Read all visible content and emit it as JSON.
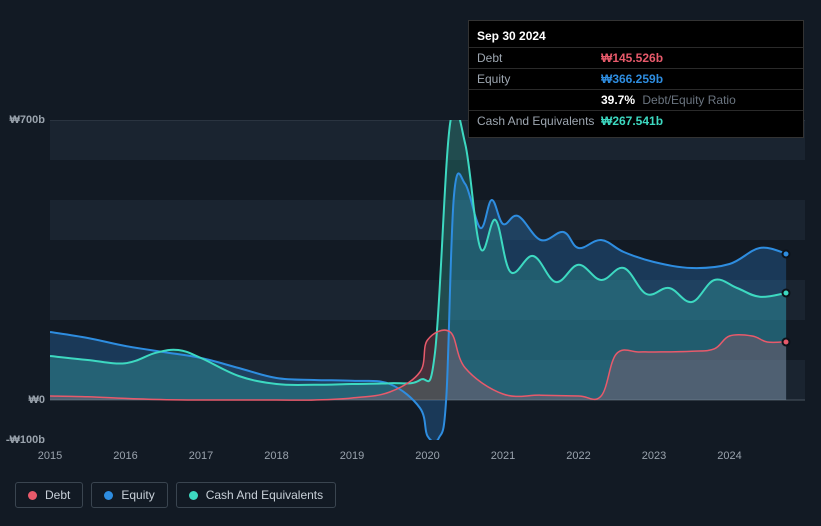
{
  "tooltip": {
    "date": "Sep 30 2024",
    "rows": {
      "debt": {
        "label": "Debt",
        "value": "₩145.526b",
        "color": "#e85a6b"
      },
      "equity": {
        "label": "Equity",
        "value": "₩366.259b",
        "color": "#2e8de0"
      },
      "ratio": {
        "pct": "39.7%",
        "label": "Debt/Equity Ratio"
      },
      "cash": {
        "label": "Cash And Equivalents",
        "value": "₩267.541b",
        "color": "#3dd9c1"
      }
    }
  },
  "chart": {
    "type": "area",
    "background_color": "#121a24",
    "plot_band_color": "#1a2430",
    "grid_color": "#3a4550",
    "ylim": [
      -100,
      700
    ],
    "y_ticks": [
      {
        "v": 700,
        "label": "₩700b"
      },
      {
        "v": 0,
        "label": "₩0"
      },
      {
        "v": -100,
        "label": "-₩100b"
      }
    ],
    "x_years": [
      2015,
      2016,
      2017,
      2018,
      2019,
      2020,
      2021,
      2022,
      2023,
      2024
    ],
    "x_domain": [
      2015,
      2025
    ],
    "series": {
      "debt": {
        "name": "Debt",
        "color": "#e85a6b",
        "fill_opacity": 0.22,
        "line_width": 1.5,
        "data": [
          [
            2015.0,
            10
          ],
          [
            2015.5,
            8
          ],
          [
            2016.0,
            4
          ],
          [
            2016.5,
            1
          ],
          [
            2017.0,
            0
          ],
          [
            2017.5,
            0
          ],
          [
            2018.0,
            0
          ],
          [
            2018.5,
            0
          ],
          [
            2019.0,
            5
          ],
          [
            2019.5,
            20
          ],
          [
            2019.9,
            70
          ],
          [
            2020.0,
            150
          ],
          [
            2020.3,
            170
          ],
          [
            2020.5,
            80
          ],
          [
            2021.0,
            15
          ],
          [
            2021.5,
            12
          ],
          [
            2022.0,
            10
          ],
          [
            2022.3,
            10
          ],
          [
            2022.5,
            115
          ],
          [
            2022.8,
            120
          ],
          [
            2023.0,
            120
          ],
          [
            2023.5,
            122
          ],
          [
            2023.8,
            128
          ],
          [
            2024.0,
            160
          ],
          [
            2024.3,
            160
          ],
          [
            2024.5,
            145
          ],
          [
            2024.75,
            145.5
          ]
        ]
      },
      "equity": {
        "name": "Equity",
        "color": "#2e8de0",
        "fill_opacity": 0.28,
        "line_width": 2,
        "data": [
          [
            2015.0,
            170
          ],
          [
            2015.5,
            155
          ],
          [
            2016.0,
            135
          ],
          [
            2016.5,
            120
          ],
          [
            2017.0,
            105
          ],
          [
            2017.5,
            80
          ],
          [
            2018.0,
            55
          ],
          [
            2018.5,
            50
          ],
          [
            2019.0,
            48
          ],
          [
            2019.5,
            40
          ],
          [
            2019.9,
            -20
          ],
          [
            2020.0,
            -90
          ],
          [
            2020.15,
            -95
          ],
          [
            2020.25,
            10
          ],
          [
            2020.35,
            510
          ],
          [
            2020.5,
            540
          ],
          [
            2020.7,
            430
          ],
          [
            2020.85,
            500
          ],
          [
            2021.0,
            440
          ],
          [
            2021.2,
            460
          ],
          [
            2021.5,
            400
          ],
          [
            2021.8,
            420
          ],
          [
            2022.0,
            380
          ],
          [
            2022.3,
            400
          ],
          [
            2022.6,
            370
          ],
          [
            2023.0,
            345
          ],
          [
            2023.5,
            330
          ],
          [
            2024.0,
            340
          ],
          [
            2024.4,
            380
          ],
          [
            2024.75,
            366
          ]
        ]
      },
      "cash": {
        "name": "Cash And Equivalents",
        "color": "#3dd9c1",
        "fill_opacity": 0.22,
        "line_width": 2,
        "data": [
          [
            2015.0,
            110
          ],
          [
            2015.5,
            100
          ],
          [
            2016.0,
            92
          ],
          [
            2016.4,
            118
          ],
          [
            2016.7,
            125
          ],
          [
            2017.0,
            105
          ],
          [
            2017.5,
            60
          ],
          [
            2018.0,
            40
          ],
          [
            2018.5,
            38
          ],
          [
            2019.0,
            40
          ],
          [
            2019.5,
            42
          ],
          [
            2019.9,
            50
          ],
          [
            2020.1,
            120
          ],
          [
            2020.3,
            692
          ],
          [
            2020.5,
            640
          ],
          [
            2020.7,
            380
          ],
          [
            2020.9,
            450
          ],
          [
            2021.1,
            320
          ],
          [
            2021.4,
            360
          ],
          [
            2021.7,
            295
          ],
          [
            2022.0,
            338
          ],
          [
            2022.3,
            300
          ],
          [
            2022.6,
            330
          ],
          [
            2022.9,
            265
          ],
          [
            2023.2,
            280
          ],
          [
            2023.5,
            245
          ],
          [
            2023.8,
            300
          ],
          [
            2024.1,
            280
          ],
          [
            2024.4,
            258
          ],
          [
            2024.75,
            267.5
          ]
        ]
      }
    },
    "legend": [
      {
        "key": "debt",
        "label": "Debt"
      },
      {
        "key": "equity",
        "label": "Equity"
      },
      {
        "key": "cash",
        "label": "Cash And Equivalents"
      }
    ]
  }
}
